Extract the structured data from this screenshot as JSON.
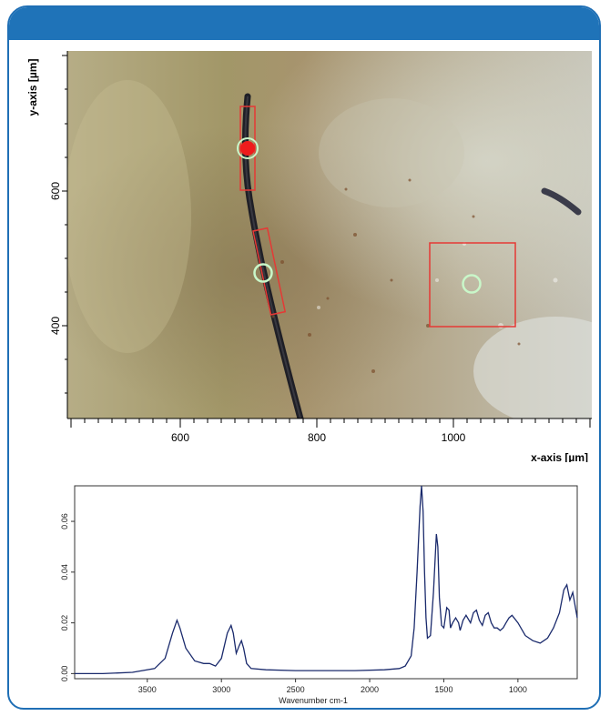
{
  "colors": {
    "frame_accent": "#1f73b8",
    "roi_red": "#e53935",
    "marker_green": "#c9f7c9",
    "spectrum_line": "#1a2a6c"
  },
  "microscope": {
    "y_axis_label": "y-axis [µm]",
    "x_axis_label": "x-axis [µm]",
    "y_ticks": [
      "600",
      "400"
    ],
    "x_ticks": [
      "600",
      "800",
      "1000"
    ]
  },
  "chart_data": {
    "type": "line",
    "xlabel": "Wavenumber cm-1",
    "ylabel": "",
    "x_ticks": [
      3500,
      3000,
      2500,
      2000,
      1500,
      1000
    ],
    "y_ticks": [
      0.0,
      0.02,
      0.04,
      0.06
    ],
    "x_range": [
      3990,
      600
    ],
    "y_range": [
      -0.002,
      0.074
    ],
    "x_reversed": true,
    "grid": false,
    "series": [
      {
        "x": [
          3990,
          3800,
          3600,
          3450,
          3380,
          3330,
          3300,
          3280,
          3240,
          3180,
          3120,
          3080,
          3040,
          3000,
          2960,
          2935,
          2920,
          2900,
          2880,
          2865,
          2850,
          2830,
          2800,
          2700,
          2500,
          2300,
          2100,
          1900,
          1800,
          1760,
          1720,
          1700,
          1680,
          1660,
          1650,
          1640,
          1630,
          1620,
          1610,
          1590,
          1570,
          1550,
          1540,
          1530,
          1515,
          1500,
          1480,
          1465,
          1455,
          1440,
          1420,
          1400,
          1390,
          1370,
          1350,
          1320,
          1300,
          1280,
          1260,
          1240,
          1220,
          1200,
          1180,
          1160,
          1140,
          1120,
          1100,
          1080,
          1060,
          1040,
          1000,
          950,
          900,
          850,
          800,
          760,
          720,
          690,
          670,
          650,
          630,
          600
        ],
        "y": [
          0.0,
          0.0,
          0.0005,
          0.002,
          0.006,
          0.016,
          0.021,
          0.018,
          0.01,
          0.005,
          0.004,
          0.004,
          0.003,
          0.006,
          0.016,
          0.019,
          0.016,
          0.008,
          0.011,
          0.013,
          0.01,
          0.004,
          0.002,
          0.0015,
          0.0012,
          0.0012,
          0.0012,
          0.0015,
          0.002,
          0.003,
          0.007,
          0.018,
          0.04,
          0.066,
          0.074,
          0.064,
          0.04,
          0.022,
          0.014,
          0.015,
          0.032,
          0.055,
          0.05,
          0.03,
          0.019,
          0.018,
          0.026,
          0.025,
          0.018,
          0.02,
          0.022,
          0.02,
          0.017,
          0.021,
          0.023,
          0.02,
          0.024,
          0.025,
          0.021,
          0.019,
          0.023,
          0.024,
          0.02,
          0.018,
          0.018,
          0.017,
          0.018,
          0.02,
          0.022,
          0.023,
          0.02,
          0.015,
          0.013,
          0.012,
          0.014,
          0.018,
          0.024,
          0.033,
          0.035,
          0.029,
          0.032,
          0.022
        ]
      }
    ]
  }
}
